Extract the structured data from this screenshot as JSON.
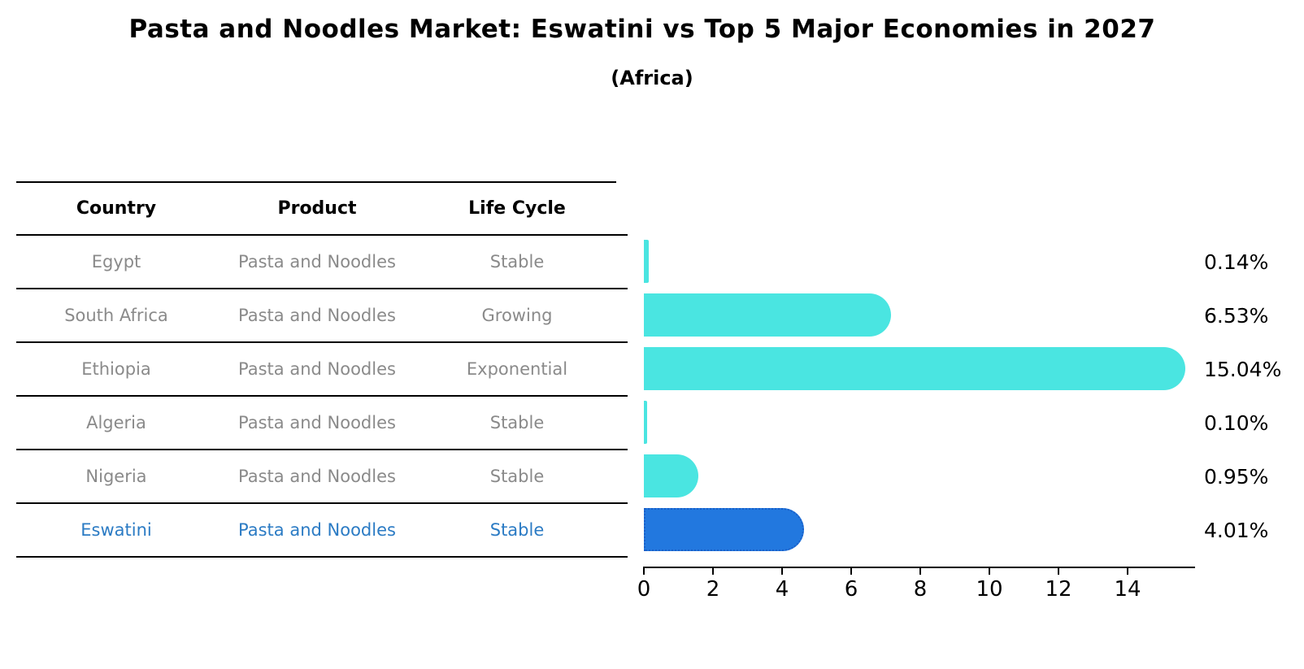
{
  "header": {
    "title": "Pasta and Noodles Market: Eswatini vs Top 5 Major Economies in 2027",
    "subtitle": "(Africa)"
  },
  "table": {
    "columns": [
      "Country",
      "Product",
      "Life Cycle"
    ],
    "rows": [
      {
        "country": "Egypt",
        "product": "Pasta and Noodles",
        "life_cycle": "Stable",
        "highlight": false
      },
      {
        "country": "South Africa",
        "product": "Pasta and Noodles",
        "life_cycle": "Growing",
        "highlight": false
      },
      {
        "country": "Ethiopia",
        "product": "Pasta and Noodles",
        "life_cycle": "Exponential",
        "highlight": false
      },
      {
        "country": "Algeria",
        "product": "Pasta and Noodles",
        "life_cycle": "Stable",
        "highlight": false
      },
      {
        "country": "Nigeria",
        "product": "Pasta and Noodles",
        "life_cycle": "Stable",
        "highlight": true
      }
    ]
  },
  "chart_data": {
    "type": "bar",
    "orientation": "horizontal",
    "title": "Pasta and Noodles Market: Eswatini vs Top 5 Major Economies in 2027",
    "subtitle": "(Africa)",
    "categories": [
      "Egypt",
      "South Africa",
      "Ethiopia",
      "Algeria",
      "Nigeria",
      "Eswatini"
    ],
    "values": [
      0.14,
      6.53,
      15.04,
      0.1,
      0.95,
      4.01
    ],
    "value_labels": [
      "0.14%",
      "6.53%",
      "15.04%",
      "0.10%",
      "0.95%",
      "4.01%"
    ],
    "highlight_index": 5,
    "xticks": [
      0,
      2,
      4,
      6,
      8,
      10,
      12,
      14
    ],
    "xlim": [
      0,
      15.9
    ],
    "grid": false,
    "legend": "none",
    "bar_color": "#4ae5e1",
    "highlight_bar_color": "#2278df",
    "highlight_border_color": "#1a5fc8",
    "highlight_text_color": "#2b7bc4",
    "row_text_color": "#8a8a8a",
    "axis_color": "#000000"
  }
}
